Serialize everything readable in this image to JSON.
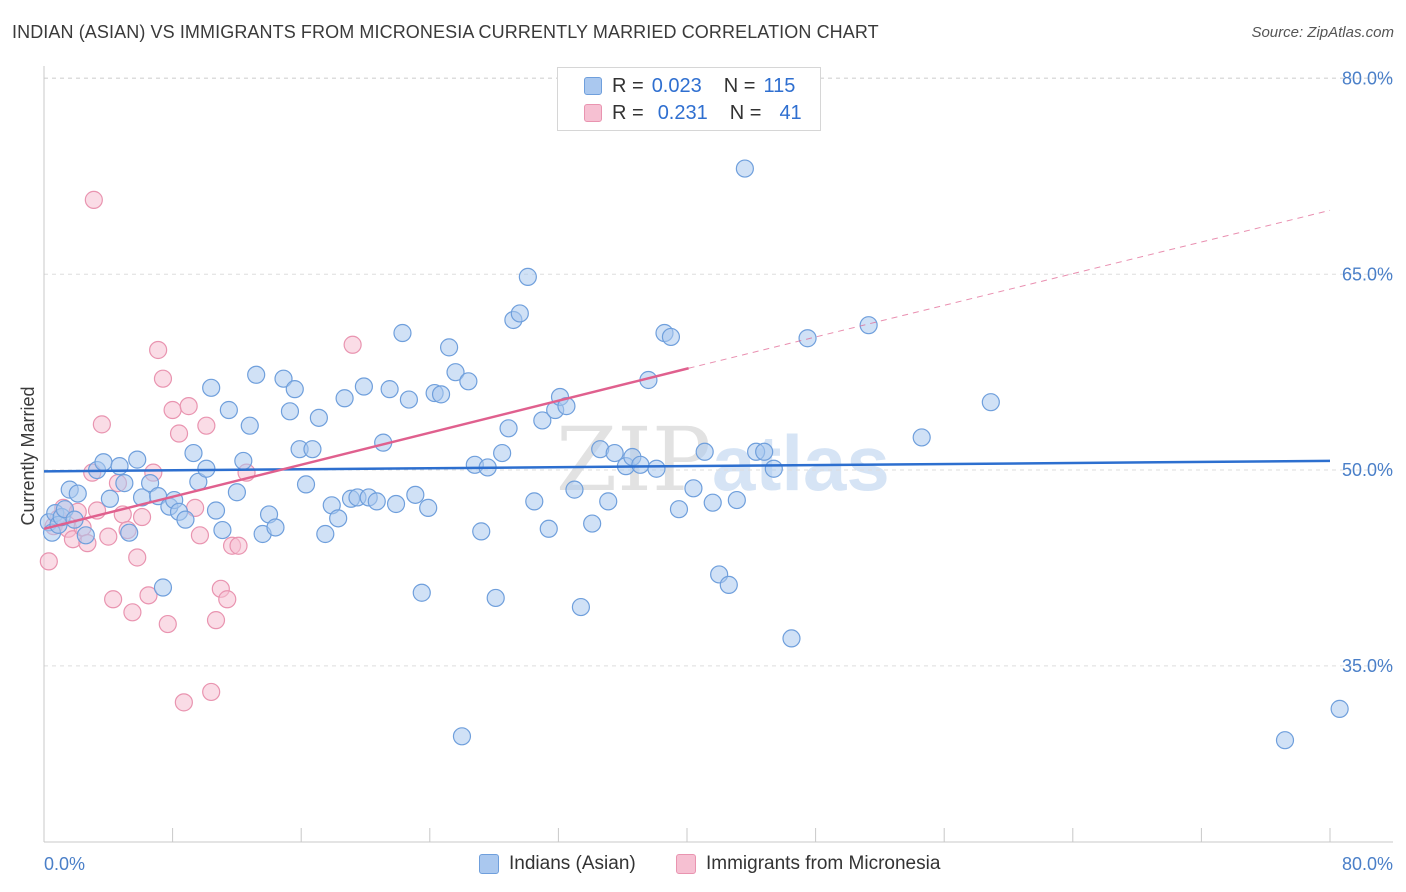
{
  "header": {
    "title": "INDIAN (ASIAN) VS IMMIGRANTS FROM MICRONESIA CURRENTLY MARRIED CORRELATION CHART",
    "source": "Source: ZipAtlas.com"
  },
  "legend": {
    "rows": [
      {
        "r_label": "R =",
        "r_value": "0.023",
        "n_label": "N =",
        "n_value": "115"
      },
      {
        "r_label": "R =",
        "r_value": "0.231",
        "n_label": "N =",
        "n_value": "41"
      }
    ]
  },
  "watermark": {
    "zip": "ZIP",
    "atlas": "atlas"
  },
  "colors": {
    "blue_fill": "#aac8ef",
    "blue_stroke": "#6f9fdc",
    "blue_line": "#2d6fcf",
    "pink_fill": "#f6c0d2",
    "pink_stroke": "#e994b0",
    "pink_line": "#e0608e",
    "tick": "#4a7fc8",
    "grid": "#dddddd"
  },
  "chart_data": {
    "type": "scatter",
    "title": "INDIAN (ASIAN) VS IMMIGRANTS FROM MICRONESIA CURRENTLY MARRIED CORRELATION CHART",
    "xlabel": "",
    "ylabel": "Currently Married",
    "xlim": [
      0,
      80
    ],
    "ylim": [
      21.5,
      80.5
    ],
    "x_tick_labels": [
      {
        "value": 0,
        "label": "0.0%"
      },
      {
        "value": 80,
        "label": "80.0%"
      }
    ],
    "y_tick_labels": [
      {
        "value": 80,
        "label": "80.0%"
      },
      {
        "value": 65,
        "label": "65.0%"
      },
      {
        "value": 50,
        "label": "50.0%"
      },
      {
        "value": 35,
        "label": "35.0%"
      }
    ],
    "grid": "horizontal dashed",
    "legend_position": "top-center",
    "series": [
      {
        "name": "Indians (Asian)",
        "color": "#aac8ef",
        "trend": {
          "x": [
            0,
            80
          ],
          "y": [
            49.9,
            50.7
          ],
          "style": "solid"
        },
        "points": [
          [
            0.3,
            46
          ],
          [
            0.5,
            45.2
          ],
          [
            0.7,
            46.7
          ],
          [
            0.9,
            45.8
          ],
          [
            1.1,
            46.4
          ],
          [
            1.3,
            47
          ],
          [
            1.6,
            48.5
          ],
          [
            1.9,
            46.2
          ],
          [
            2.1,
            48.2
          ],
          [
            2.6,
            45
          ],
          [
            3.3,
            50
          ],
          [
            3.7,
            50.6
          ],
          [
            4.1,
            47.8
          ],
          [
            4.7,
            50.3
          ],
          [
            5,
            49
          ],
          [
            5.3,
            45.2
          ],
          [
            5.8,
            50.8
          ],
          [
            6.1,
            47.9
          ],
          [
            6.6,
            49
          ],
          [
            7.1,
            48
          ],
          [
            7.4,
            41
          ],
          [
            7.8,
            47.2
          ],
          [
            8.1,
            47.7
          ],
          [
            8.4,
            46.8
          ],
          [
            8.8,
            46.2
          ],
          [
            9.3,
            51.3
          ],
          [
            9.6,
            49.1
          ],
          [
            10.1,
            50.1
          ],
          [
            10.4,
            56.3
          ],
          [
            10.7,
            46.9
          ],
          [
            11.1,
            45.4
          ],
          [
            11.5,
            54.6
          ],
          [
            12,
            48.3
          ],
          [
            12.4,
            50.7
          ],
          [
            12.8,
            53.4
          ],
          [
            13.2,
            57.3
          ],
          [
            13.6,
            45.1
          ],
          [
            14,
            46.6
          ],
          [
            14.4,
            45.6
          ],
          [
            14.9,
            57
          ],
          [
            15.3,
            54.5
          ],
          [
            15.6,
            56.2
          ],
          [
            15.9,
            51.6
          ],
          [
            16.3,
            48.9
          ],
          [
            16.7,
            51.6
          ],
          [
            17.1,
            54
          ],
          [
            17.5,
            45.1
          ],
          [
            17.9,
            47.3
          ],
          [
            18.3,
            46.3
          ],
          [
            18.7,
            55.5
          ],
          [
            19.1,
            47.8
          ],
          [
            19.5,
            47.9
          ],
          [
            19.9,
            56.4
          ],
          [
            20.2,
            47.9
          ],
          [
            20.7,
            47.6
          ],
          [
            21.1,
            52.1
          ],
          [
            21.5,
            56.2
          ],
          [
            21.9,
            47.4
          ],
          [
            22.3,
            60.5
          ],
          [
            22.7,
            55.4
          ],
          [
            23.1,
            48.1
          ],
          [
            23.5,
            40.6
          ],
          [
            23.9,
            47.1
          ],
          [
            24.3,
            55.9
          ],
          [
            24.7,
            55.8
          ],
          [
            25.2,
            59.4
          ],
          [
            25.6,
            57.5
          ],
          [
            26,
            29.6
          ],
          [
            26.4,
            56.8
          ],
          [
            26.8,
            50.4
          ],
          [
            27.2,
            45.3
          ],
          [
            27.6,
            50.2
          ],
          [
            28.1,
            40.2
          ],
          [
            28.5,
            51.3
          ],
          [
            28.9,
            53.2
          ],
          [
            29.2,
            61.5
          ],
          [
            29.6,
            62
          ],
          [
            30.1,
            64.8
          ],
          [
            30.5,
            47.6
          ],
          [
            31,
            53.8
          ],
          [
            31.4,
            45.5
          ],
          [
            31.8,
            54.6
          ],
          [
            32.1,
            55.6
          ],
          [
            32.5,
            54.9
          ],
          [
            33,
            48.5
          ],
          [
            33.4,
            39.5
          ],
          [
            34.1,
            45.9
          ],
          [
            34.6,
            51.6
          ],
          [
            35.1,
            47.6
          ],
          [
            35.5,
            51.3
          ],
          [
            36.2,
            50.3
          ],
          [
            36.6,
            51
          ],
          [
            37.1,
            50.4
          ],
          [
            37.6,
            56.9
          ],
          [
            38.1,
            50.1
          ],
          [
            38.6,
            60.5
          ],
          [
            39,
            60.2
          ],
          [
            39.5,
            47
          ],
          [
            40.4,
            48.6
          ],
          [
            41.1,
            51.4
          ],
          [
            41.6,
            47.5
          ],
          [
            42,
            42
          ],
          [
            42.6,
            41.2
          ],
          [
            43.1,
            47.7
          ],
          [
            43.6,
            73.1
          ],
          [
            44.3,
            51.4
          ],
          [
            44.8,
            51.4
          ],
          [
            45.4,
            50.1
          ],
          [
            46.5,
            37.1
          ],
          [
            47.5,
            60.1
          ],
          [
            51.3,
            61.1
          ],
          [
            54.6,
            52.5
          ],
          [
            58.9,
            55.2
          ],
          [
            77.2,
            29.3
          ],
          [
            80.6,
            31.7
          ]
        ]
      },
      {
        "name": "Immigrants from Micronesia",
        "color": "#f6c0d2",
        "trend": {
          "x": [
            0,
            40.1
          ],
          "y": [
            45.5,
            57.8
          ],
          "style": "solid",
          "extension_to": [
            80,
            69.9
          ],
          "extension_style": "dashed"
        },
        "points": [
          [
            0.3,
            43
          ],
          [
            0.6,
            45.7
          ],
          [
            0.9,
            46.3
          ],
          [
            1.2,
            47.1
          ],
          [
            1.5,
            45.5
          ],
          [
            1.8,
            44.7
          ],
          [
            2.1,
            46.8
          ],
          [
            2.4,
            45.6
          ],
          [
            2.7,
            44.4
          ],
          [
            3,
            49.8
          ],
          [
            3.3,
            46.9
          ],
          [
            3.6,
            53.5
          ],
          [
            4,
            44.9
          ],
          [
            4.3,
            40.1
          ],
          [
            4.6,
            49
          ],
          [
            4.9,
            46.6
          ],
          [
            5.2,
            45.4
          ],
          [
            5.5,
            39.1
          ],
          [
            5.8,
            43.3
          ],
          [
            6.1,
            46.4
          ],
          [
            6.5,
            40.4
          ],
          [
            6.8,
            49.8
          ],
          [
            7.1,
            59.2
          ],
          [
            7.4,
            57
          ],
          [
            7.7,
            38.2
          ],
          [
            8,
            54.6
          ],
          [
            8.4,
            52.8
          ],
          [
            8.7,
            32.2
          ],
          [
            9,
            54.9
          ],
          [
            9.4,
            47.1
          ],
          [
            9.7,
            45
          ],
          [
            10.1,
            53.4
          ],
          [
            10.4,
            33
          ],
          [
            10.7,
            38.5
          ],
          [
            11,
            40.9
          ],
          [
            11.4,
            40.1
          ],
          [
            11.7,
            44.2
          ],
          [
            12.1,
            44.2
          ],
          [
            12.6,
            49.8
          ],
          [
            19.2,
            59.6
          ],
          [
            3.1,
            70.7
          ]
        ]
      }
    ]
  }
}
